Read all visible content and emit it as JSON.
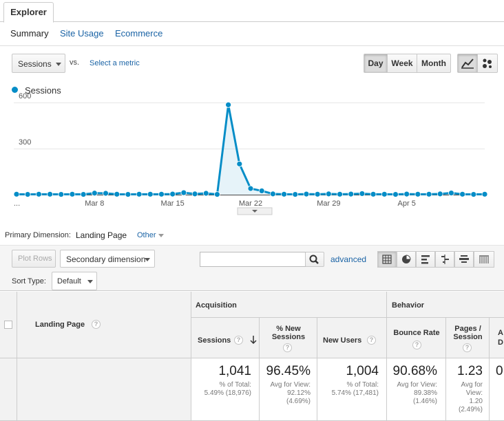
{
  "tabs": {
    "explorer": "Explorer"
  },
  "subnav": {
    "summary": "Summary",
    "site_usage": "Site Usage",
    "ecommerce": "Ecommerce"
  },
  "controls": {
    "metric": "Sessions",
    "vs": "vs.",
    "select_metric": "Select a metric",
    "day": "Day",
    "week": "Week",
    "month": "Month"
  },
  "chart_data": {
    "type": "line",
    "series": [
      {
        "name": "Sessions",
        "color": "#058dc7",
        "values": [
          3,
          2,
          3,
          3,
          2,
          3,
          2,
          10,
          9,
          3,
          2,
          3,
          3,
          3,
          4,
          13,
          5,
          9,
          2,
          585,
          200,
          40,
          25,
          5,
          3,
          2,
          4,
          3,
          5,
          3,
          4,
          7,
          3,
          3,
          2,
          4,
          3,
          3,
          5,
          11,
          3,
          2,
          3
        ]
      }
    ],
    "x_tick_labels": [
      "...",
      "Mar 8",
      "Mar 15",
      "Mar 22",
      "Mar 29",
      "Apr 5"
    ],
    "x_tick_indices": [
      0,
      7,
      14,
      21,
      28,
      35
    ],
    "y_ticks": [
      "300",
      "600"
    ],
    "ylim": [
      0,
      600
    ],
    "legend": "top-left",
    "grid": true
  },
  "primary_dimension": {
    "label": "Primary Dimension:",
    "value": "Landing Page",
    "other": "Other"
  },
  "toolbar": {
    "plot_rows": "Plot Rows",
    "secondary_dimension": "Secondary dimension",
    "search_value": "",
    "advanced": "advanced",
    "sort_type_label": "Sort Type:",
    "sort_type_value": "Default"
  },
  "table": {
    "landing_page_header": "Landing Page",
    "group_acquisition": "Acquisition",
    "group_behavior": "Behavior",
    "columns": {
      "sessions": "Sessions",
      "new_sessions_1": "% New",
      "new_sessions_2": "Sessions",
      "new_users": "New Users",
      "bounce_rate": "Bounce Rate",
      "pages_1": "Pages /",
      "pages_2": "Session",
      "avg_1": "A",
      "avg_2": "D"
    },
    "totals": {
      "sessions": {
        "value": "1,041",
        "l1": "% of Total:",
        "l2": "5.49% (18,976)"
      },
      "new_sessions": {
        "value": "96.45%",
        "l1": "Avg for View:",
        "l2": "92.12%",
        "l3": "(4.69%)"
      },
      "new_users": {
        "value": "1,004",
        "l1": "% of Total:",
        "l2": "5.74% (17,481)"
      },
      "bounce_rate": {
        "value": "90.68%",
        "l1": "Avg for View:",
        "l2": "89.38%",
        "l3": "(1.46%)"
      },
      "pages": {
        "value": "1.23",
        "l1": "Avg for",
        "l2": "View:",
        "l3": "1.20",
        "l4": "(2.49%)"
      },
      "avg": {
        "value": "0"
      }
    }
  },
  "colors": {
    "accent": "#058dc7",
    "link": "#1a63a5"
  }
}
